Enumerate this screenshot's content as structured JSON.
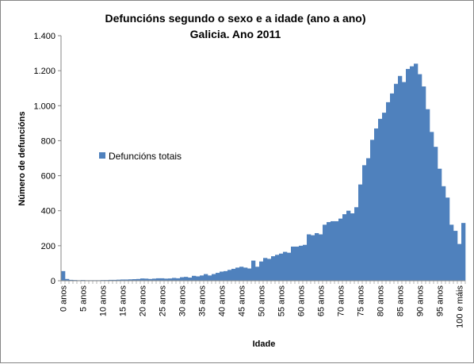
{
  "chart_data": {
    "type": "bar",
    "title": "Defuncións segundo o sexo e a idade (ano a ano)",
    "subtitle": "Galicia. Ano 2011",
    "xlabel": "Idade",
    "ylabel": "Número de defuncións",
    "ylim": [
      0,
      1400
    ],
    "yticks": [
      0,
      200,
      400,
      600,
      800,
      1000,
      1200,
      1400
    ],
    "ytick_labels": [
      "0",
      "200",
      "400",
      "600",
      "800",
      "1.000",
      "1.200",
      "1.400"
    ],
    "xtick_labels": [
      "0 anos",
      "5 anos",
      "10 anos",
      "15 anos",
      "20 anos",
      "25 anos",
      "30 anos",
      "35 anos",
      "40 anos",
      "45 anos",
      "50 anos",
      "55 anos",
      "60 anos",
      "65 anos",
      "70 anos",
      "75 anos",
      "80 anos",
      "85 anos",
      "90 anos",
      "95 anos",
      "100 e máis"
    ],
    "xtick_every": 5,
    "grid": false,
    "legend_position": "left-middle",
    "series": [
      {
        "name": "Defuncións totais",
        "color": "#4f81bd",
        "values": [
          55,
          10,
          5,
          4,
          3,
          4,
          3,
          3,
          3,
          3,
          4,
          4,
          5,
          5,
          6,
          7,
          7,
          8,
          9,
          10,
          13,
          12,
          10,
          12,
          14,
          14,
          12,
          13,
          16,
          14,
          20,
          22,
          18,
          28,
          25,
          30,
          38,
          30,
          38,
          45,
          52,
          55,
          62,
          68,
          75,
          80,
          75,
          70,
          115,
          80,
          110,
          130,
          125,
          140,
          148,
          155,
          165,
          160,
          195,
          195,
          200,
          205,
          265,
          260,
          272,
          265,
          320,
          335,
          340,
          340,
          355,
          380,
          400,
          385,
          420,
          550,
          660,
          700,
          805,
          870,
          925,
          960,
          1020,
          1070,
          1125,
          1170,
          1135,
          1210,
          1225,
          1240,
          1180,
          1110,
          980,
          850,
          765,
          640,
          540,
          475,
          320,
          285,
          210,
          330
        ]
      }
    ]
  }
}
